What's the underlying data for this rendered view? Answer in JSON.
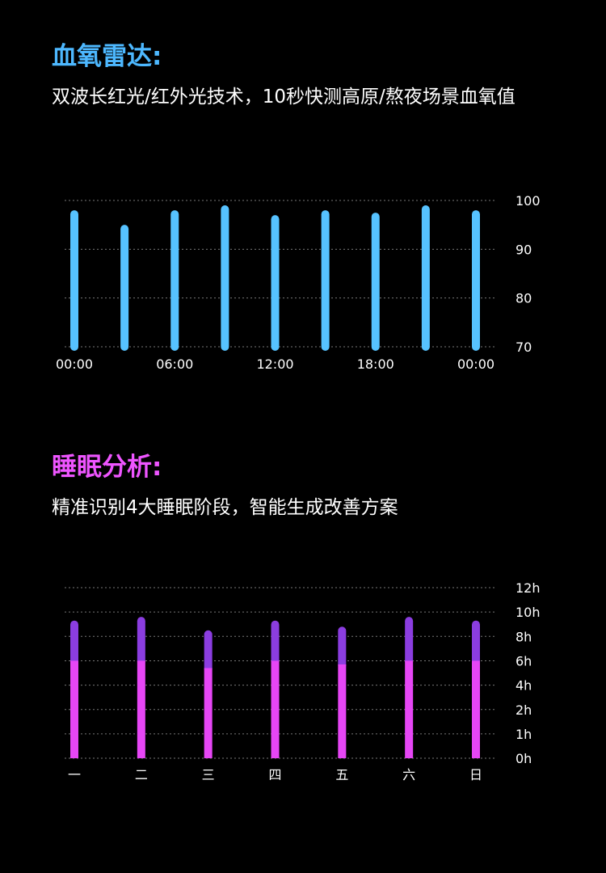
{
  "spo2": {
    "title": "血氧雷达:",
    "subtitle": "双波长红光/红外光技术，10秒快测高原/熬夜场景血氧值",
    "title_color": "#4db8ff",
    "bar_color": "#56c2ff"
  },
  "sleep": {
    "title": "睡眠分析:",
    "subtitle": "精准识别4大睡眠阶段，智能生成改善方案",
    "title_color": "#ee55ff",
    "bottom_color": "#e646f5",
    "top_color": "#8b3de0"
  },
  "chart_data": [
    {
      "type": "bar",
      "x": [
        "00:00",
        "03:00",
        "06:00",
        "09:00",
        "12:00",
        "15:00",
        "18:00",
        "21:00",
        "00:00"
      ],
      "x_tick_labels": [
        "00:00",
        "06:00",
        "12:00",
        "18:00",
        "00:00"
      ],
      "values": [
        98,
        95,
        98,
        99,
        97,
        98,
        97.5,
        99,
        98
      ],
      "ylim": [
        70,
        100
      ],
      "y_ticks": [
        "100",
        "90",
        "80",
        "70"
      ],
      "grid": true,
      "y_axis_side": "right"
    },
    {
      "type": "bar",
      "stacked": true,
      "categories": [
        "一",
        "二",
        "三",
        "四",
        "五",
        "六",
        "日"
      ],
      "series": [
        {
          "values": [
            6,
            6,
            5.4,
            6,
            5.7,
            6,
            6
          ]
        },
        {
          "values": [
            3.3,
            3.6,
            3.1,
            3.3,
            3.1,
            3.6,
            3.3
          ]
        }
      ],
      "y_ticks": [
        "0h",
        "1h",
        "2h",
        "4h",
        "6h",
        "8h",
        "10h",
        "12h"
      ],
      "y_tick_values": [
        0,
        1,
        2,
        4,
        6,
        8,
        10,
        12
      ],
      "grid": true,
      "y_axis_side": "right"
    }
  ]
}
